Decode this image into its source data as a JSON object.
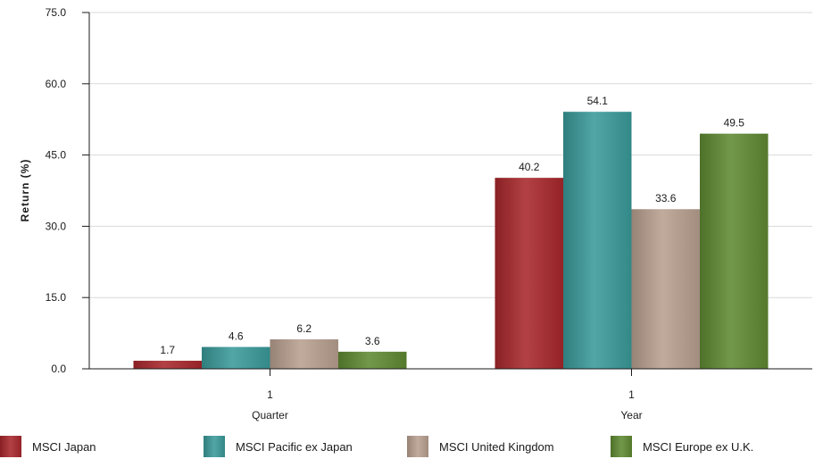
{
  "chart_data": {
    "type": "bar",
    "ylabel": "Return (%)",
    "ylim": [
      0,
      75
    ],
    "yticks": [
      "0.0",
      "15.0",
      "30.0",
      "45.0",
      "60.0",
      "75.0"
    ],
    "grid": true,
    "legend_position": "bottom",
    "groups": [
      {
        "tick": "1",
        "label": "Quarter"
      },
      {
        "tick": "1",
        "label": "Year"
      }
    ],
    "series": [
      {
        "name": "MSCI Japan",
        "color": "#a8272c",
        "values": [
          1.7,
          40.2
        ],
        "labels": [
          "1.7",
          "40.2"
        ]
      },
      {
        "name": "MSCI Pacific ex Japan",
        "color": "#3a9a9a",
        "values": [
          4.6,
          54.1
        ],
        "labels": [
          "4.6",
          "54.1"
        ]
      },
      {
        "name": "MSCI United Kingdom",
        "color": "#b8a090",
        "values": [
          6.2,
          33.6
        ],
        "labels": [
          "6.2",
          "33.6"
        ]
      },
      {
        "name": "MSCI Europe ex U.K.",
        "color": "#5f8a32",
        "values": [
          3.6,
          49.5
        ],
        "labels": [
          "3.6",
          "49.5"
        ]
      }
    ]
  }
}
